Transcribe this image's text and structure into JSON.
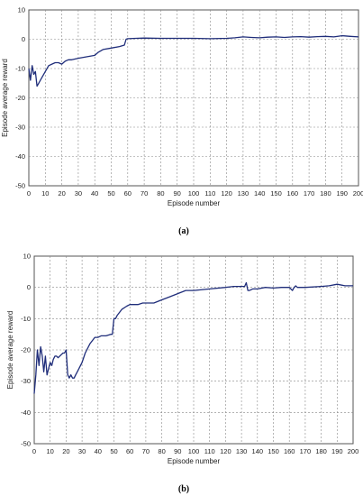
{
  "chart_data": [
    {
      "panel": "(a)",
      "type": "line",
      "xlabel": "Episode number",
      "ylabel": "Episode average reward",
      "xlim": [
        0,
        200
      ],
      "ylim": [
        -50,
        10
      ],
      "xticks": [
        0,
        10,
        20,
        30,
        40,
        50,
        60,
        70,
        80,
        90,
        100,
        110,
        120,
        130,
        140,
        150,
        160,
        170,
        180,
        190,
        200
      ],
      "yticks": [
        10,
        0,
        -10,
        -20,
        -30,
        -40,
        -50
      ],
      "grid": true,
      "line_color": "#1f2d7a",
      "series": [
        {
          "x": [
            0,
            1,
            2,
            3,
            4,
            5,
            6,
            7,
            8,
            10,
            12,
            14,
            16,
            18,
            20,
            22,
            24,
            26,
            30,
            35,
            40,
            42,
            45,
            50,
            55,
            58,
            59,
            60,
            65,
            70,
            80,
            90,
            100,
            110,
            120,
            125,
            130,
            135,
            140,
            145,
            150,
            155,
            160,
            165,
            170,
            175,
            180,
            185,
            190,
            195,
            200
          ],
          "y": [
            -10,
            -14,
            -9,
            -12,
            -11,
            -16,
            -15,
            -14,
            -13,
            -11,
            -9,
            -8.5,
            -8,
            -8,
            -8.5,
            -7.5,
            -7,
            -7,
            -6.5,
            -6,
            -5.5,
            -4.5,
            -3.5,
            -3,
            -2.5,
            -2,
            0,
            0.2,
            0.3,
            0.4,
            0.3,
            0.3,
            0.3,
            0.2,
            0.3,
            0.5,
            0.8,
            0.6,
            0.5,
            0.7,
            0.8,
            0.6,
            0.8,
            0.9,
            0.7,
            0.9,
            1,
            0.8,
            1.2,
            1,
            0.8
          ]
        }
      ]
    },
    {
      "panel": "(b)",
      "type": "line",
      "xlabel": "Episode number",
      "ylabel": "Episode average reward",
      "xlim": [
        0,
        200
      ],
      "ylim": [
        -50,
        10
      ],
      "xticks": [
        0,
        10,
        20,
        30,
        40,
        50,
        60,
        70,
        80,
        90,
        100,
        110,
        120,
        130,
        140,
        150,
        160,
        170,
        180,
        190,
        200
      ],
      "yticks": [
        10,
        0,
        -10,
        -20,
        -30,
        -40,
        -50
      ],
      "grid": true,
      "line_color": "#1f2d7a",
      "series": [
        {
          "x": [
            0,
            1,
            2,
            3,
            4,
            5,
            6,
            7,
            8,
            9,
            10,
            11,
            12,
            13,
            14,
            15,
            16,
            17,
            18,
            19,
            20,
            21,
            22,
            23,
            24,
            25,
            26,
            27,
            28,
            30,
            32,
            35,
            38,
            40,
            42,
            45,
            48,
            49,
            50,
            51,
            52,
            55,
            58,
            60,
            62,
            65,
            68,
            70,
            75,
            80,
            85,
            90,
            95,
            100,
            110,
            120,
            125,
            130,
            132,
            133,
            134,
            135,
            137,
            140,
            145,
            150,
            155,
            160,
            162,
            163,
            164,
            165,
            170,
            180,
            185,
            190,
            195,
            200
          ],
          "y": [
            -34,
            -28,
            -20,
            -25,
            -19,
            -22,
            -27,
            -22,
            -28,
            -26,
            -24,
            -25,
            -23,
            -22,
            -22,
            -22.5,
            -22,
            -21.5,
            -21,
            -21,
            -20,
            -28,
            -29,
            -28,
            -29,
            -29,
            -28,
            -27,
            -26,
            -24,
            -21,
            -18,
            -16,
            -16,
            -15.5,
            -15.5,
            -15,
            -15,
            -10,
            -10,
            -9,
            -7,
            -6,
            -5.5,
            -5.5,
            -5.5,
            -5,
            -5,
            -5,
            -4,
            -3,
            -2,
            -1,
            -1,
            -0.5,
            0,
            0.3,
            0.3,
            0.3,
            1.5,
            -1,
            -1,
            -0.5,
            -0.5,
            0,
            -0.2,
            0,
            0,
            -1,
            0,
            0.5,
            0,
            0,
            0.3,
            0.5,
            1,
            0.5,
            0.5
          ]
        }
      ]
    }
  ],
  "captions": {
    "a": "(a)",
    "b": "(b)"
  }
}
